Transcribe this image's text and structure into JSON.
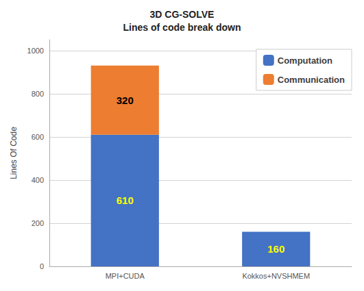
{
  "chart_data": {
    "type": "bar",
    "title": "3D CG-SOLVE\nLines of code break down",
    "categories": [
      "MPI+CUDA",
      "Kokkos+NVSHMEM"
    ],
    "series": [
      {
        "name": "Computation",
        "color": "#4472C4",
        "values": [
          610,
          160
        ]
      },
      {
        "name": "Communication",
        "color": "#ED7D31",
        "values": [
          320,
          0
        ]
      }
    ],
    "ylabel": "Lines Of Code",
    "ylim": [
      0,
      1050
    ],
    "yticks": [
      0,
      200,
      400,
      600,
      800,
      1000
    ],
    "grid": true,
    "legend": "upper right",
    "stacked": true,
    "data_labels": true
  }
}
